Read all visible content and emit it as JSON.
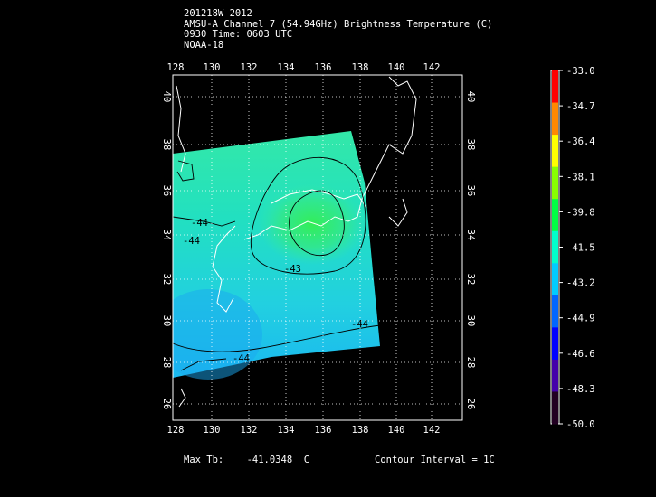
{
  "header": {
    "line1": "201218W 2012",
    "line2": "AMSU-A Channel 7 (54.94GHz) Brightness Temperature (C)",
    "line3": "0930 Time: 0603 UTC",
    "line4": "NOAA-18"
  },
  "axes": {
    "lon_ticks": [
      "128",
      "130",
      "132",
      "134",
      "136",
      "138",
      "140",
      "142"
    ],
    "lat_ticks": [
      "40",
      "38",
      "36",
      "34",
      "32",
      "30",
      "28",
      "26"
    ]
  },
  "contour_labels": [
    "-43",
    "-44",
    "-44",
    "-44",
    "-44"
  ],
  "colorbar": {
    "labels": [
      "-33.0",
      "-34.7",
      "-36.4",
      "-38.1",
      "-39.8",
      "-41.5",
      "-43.2",
      "-44.9",
      "-46.6",
      "-48.3",
      "-50.0"
    ],
    "colors": [
      "#ff0000",
      "#ff8800",
      "#ffff00",
      "#88ff00",
      "#00ff44",
      "#00ffcc",
      "#00ccff",
      "#0066ff",
      "#0000ff",
      "#4400aa",
      "#220022"
    ]
  },
  "footer": {
    "max_label": "Max Tb:",
    "max_value": "-41.0348",
    "max_unit": "C",
    "contour_interval": "Contour Interval = 1C"
  }
}
